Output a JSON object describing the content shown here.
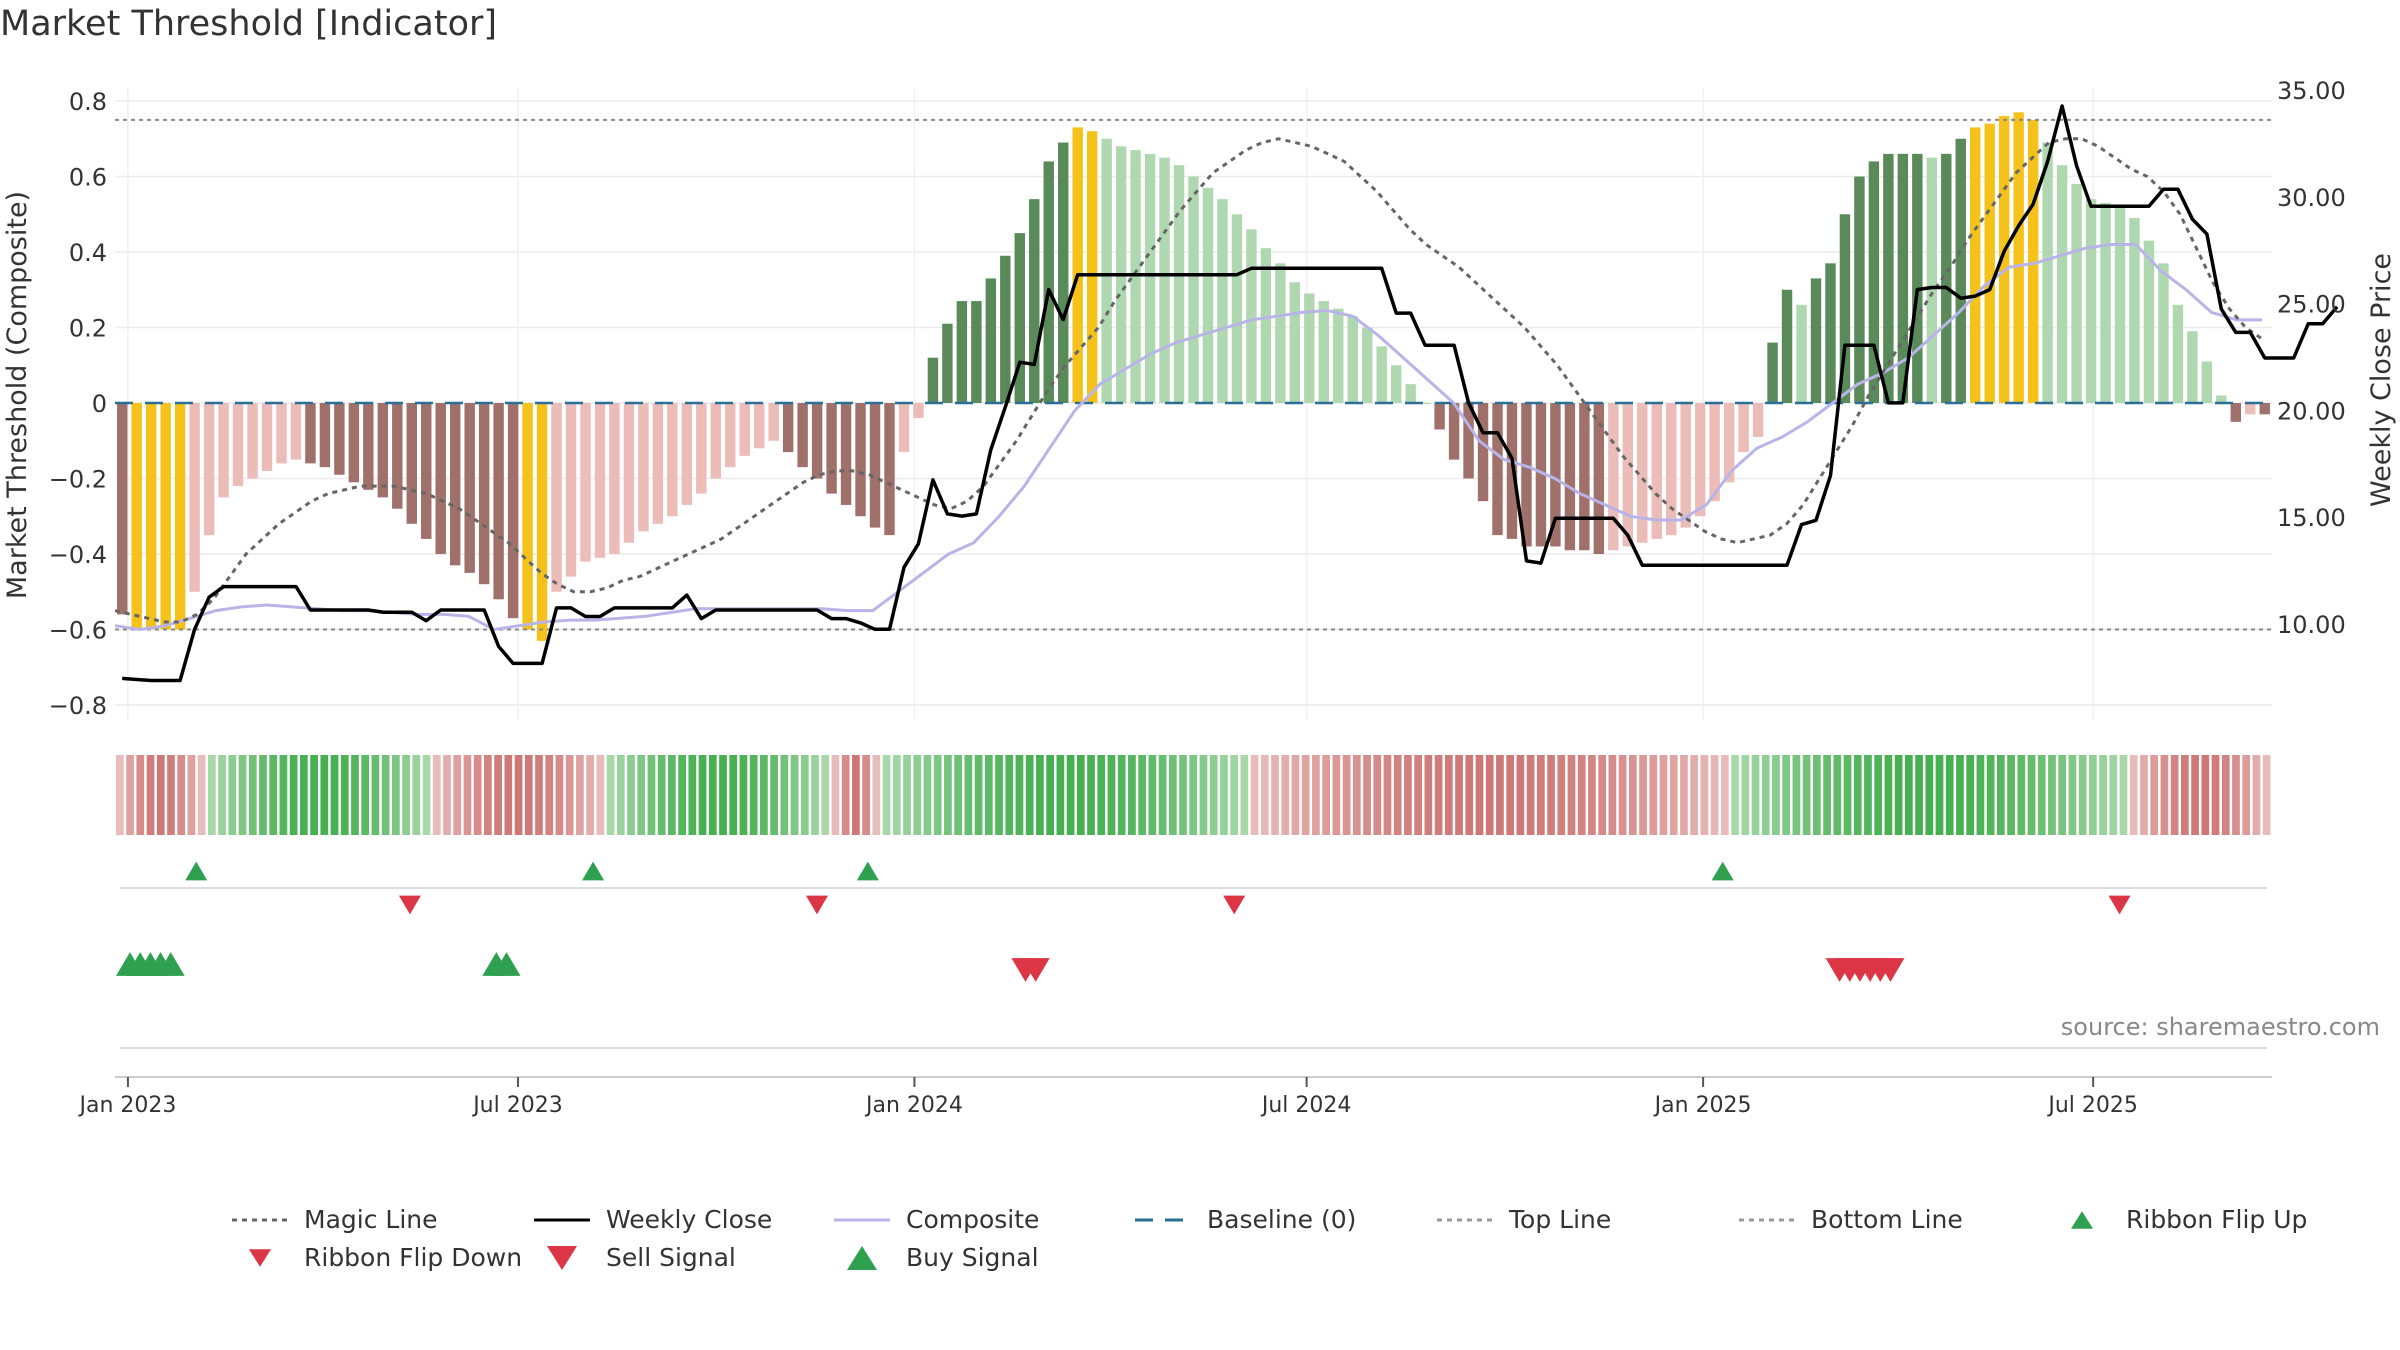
{
  "title": "Market Threshold [Indicator]",
  "source": "source: sharemaestro.com",
  "colors": {
    "pos_dark": "#5a8a5a",
    "pos_light": "#b0d8b0",
    "neg_dark": "#a0706a",
    "neg_light": "#ebbcb8",
    "extreme": "#f5c21b",
    "close": "#000000",
    "composite": "#b8b4e8",
    "magic": "#666666",
    "baseline": "#2a6f97",
    "buy": "#2ea04f",
    "sell": "#dc3545"
  },
  "legend": [
    {
      "label": "Magic Line",
      "icon": "dotted-line-icon",
      "color": "#666666"
    },
    {
      "label": "Weekly Close",
      "icon": "solid-line-icon",
      "color": "#000000"
    },
    {
      "label": "Composite",
      "icon": "solid-line-icon",
      "color": "#b8b4e8"
    },
    {
      "label": "Baseline (0)",
      "icon": "dashed-line-icon",
      "color": "#2a6f97"
    },
    {
      "label": "Top Line",
      "icon": "dotted-line-icon",
      "color": "#999999"
    },
    {
      "label": "Bottom Line",
      "icon": "dotted-line-icon",
      "color": "#999999"
    },
    {
      "label": "Ribbon Flip Up",
      "icon": "triangle-up-icon",
      "color": "#2ea04f"
    },
    {
      "label": "Ribbon Flip Down",
      "icon": "triangle-down-icon",
      "color": "#dc3545"
    },
    {
      "label": "Sell Signal",
      "icon": "triangle-down-large-icon",
      "color": "#dc3545"
    },
    {
      "label": "Buy Signal",
      "icon": "triangle-up-large-icon",
      "color": "#2ea04f"
    }
  ],
  "chart_data": {
    "type": "bar",
    "ylabel_left": "Market Threshold (Composite)",
    "ylabel_right": "Weekly Close Price",
    "ylim_left": [
      -0.8,
      0.8
    ],
    "ylim_right": [
      5,
      35
    ],
    "yticks_left": [
      "0.8",
      "0.6",
      "0.4",
      "0.2",
      "0",
      "−0.2",
      "−0.4",
      "−0.6",
      "−0.8"
    ],
    "yticks_left_values": [
      0.8,
      0.6,
      0.4,
      0.2,
      0,
      -0.2,
      -0.4,
      -0.6,
      -0.8
    ],
    "yticks_right": [
      "35.00",
      "30.00",
      "25.00",
      "20.00",
      "15.00",
      "10.00"
    ],
    "yticks_right_values": [
      35,
      30,
      25,
      20,
      15,
      10
    ],
    "xticks": [
      "Jan 2023",
      "Jul 2023",
      "Jan 2024",
      "Jul 2024",
      "Jan 2025",
      "Jul 2025"
    ],
    "x_range": [
      "2022-12-26",
      "2025-09-22"
    ],
    "xtick_dates": [
      "2023-01-01",
      "2023-07-01",
      "2024-01-01",
      "2024-07-01",
      "2025-01-01",
      "2025-07-01"
    ],
    "top_line": 0.75,
    "bottom_line": -0.6,
    "baseline": 0,
    "grid": true,
    "legend_position": "bottom",
    "bars_note": "weekly composite histogram, one bar per week",
    "composite_bars": [
      -0.56,
      -0.6,
      -0.6,
      -0.6,
      -0.6,
      -0.5,
      -0.35,
      -0.25,
      -0.22,
      -0.2,
      -0.18,
      -0.16,
      -0.15,
      -0.16,
      -0.17,
      -0.19,
      -0.21,
      -0.23,
      -0.25,
      -0.28,
      -0.32,
      -0.36,
      -0.4,
      -0.43,
      -0.45,
      -0.48,
      -0.52,
      -0.57,
      -0.6,
      -0.63,
      -0.5,
      -0.46,
      -0.42,
      -0.41,
      -0.4,
      -0.37,
      -0.34,
      -0.32,
      -0.3,
      -0.27,
      -0.24,
      -0.2,
      -0.17,
      -0.14,
      -0.12,
      -0.1,
      -0.13,
      -0.17,
      -0.2,
      -0.24,
      -0.27,
      -0.3,
      -0.33,
      -0.35,
      -0.13,
      -0.04,
      0.12,
      0.21,
      0.27,
      0.27,
      0.33,
      0.39,
      0.45,
      0.54,
      0.64,
      0.69,
      0.73,
      0.72,
      0.7,
      0.68,
      0.67,
      0.66,
      0.65,
      0.63,
      0.6,
      0.57,
      0.54,
      0.5,
      0.46,
      0.41,
      0.37,
      0.32,
      0.29,
      0.27,
      0.25,
      0.23,
      0.2,
      0.15,
      0.1,
      0.05,
      0,
      -0.07,
      -0.15,
      -0.2,
      -0.26,
      -0.35,
      -0.36,
      -0.38,
      -0.38,
      -0.38,
      -0.39,
      -0.39,
      -0.4,
      -0.39,
      -0.38,
      -0.37,
      -0.36,
      -0.35,
      -0.33,
      -0.3,
      -0.26,
      -0.21,
      -0.13,
      -0.09,
      0.16,
      0.3,
      0.26,
      0.33,
      0.37,
      0.5,
      0.6,
      0.64,
      0.66,
      0.66,
      0.66,
      0.65,
      0.66,
      0.7,
      0.73,
      0.74,
      0.76,
      0.77,
      0.75,
      0.69,
      0.63,
      0.58,
      0.54,
      0.53,
      0.52,
      0.49,
      0.43,
      0.37,
      0.26,
      0.19,
      0.11,
      0.02,
      -0.05,
      -0.03,
      -0.03
    ],
    "weekly_close": [
      7.5,
      7.45,
      7.4,
      7.4,
      7.4,
      9.8,
      11.3,
      11.8,
      11.8,
      11.8,
      11.8,
      11.8,
      11.8,
      10.7,
      10.7,
      10.7,
      10.7,
      10.7,
      10.6,
      10.6,
      10.6,
      10.2,
      10.7,
      10.7,
      10.7,
      10.7,
      9.0,
      8.2,
      8.2,
      8.2,
      10.8,
      10.8,
      10.4,
      10.4,
      10.8,
      10.8,
      10.8,
      10.8,
      10.8,
      11.4,
      10.3,
      10.7,
      10.7,
      10.7,
      10.7,
      10.7,
      10.7,
      10.7,
      10.7,
      10.3,
      10.3,
      10.1,
      9.8,
      9.8,
      12.7,
      13.8,
      16.8,
      15.2,
      15.1,
      15.2,
      18.2,
      20.2,
      22.3,
      22.2,
      25.7,
      24.3,
      26.4,
      26.4,
      26.4,
      26.4,
      26.4,
      26.4,
      26.4,
      26.4,
      26.4,
      26.4,
      26.4,
      26.4,
      26.7,
      26.7,
      26.7,
      26.7,
      26.7,
      26.7,
      26.7,
      26.7,
      26.7,
      26.7,
      24.6,
      24.6,
      23.1,
      23.1,
      23.1,
      20.4,
      19.0,
      19.0,
      17.8,
      13.0,
      12.9,
      15.0,
      15.0,
      15.0,
      15.0,
      15.0,
      14.2,
      12.8,
      12.8,
      12.8,
      12.8,
      12.8,
      12.8,
      12.8,
      12.8,
      12.8,
      12.8,
      12.8,
      14.7,
      14.9,
      17.0,
      23.1,
      23.1,
      23.1,
      20.4,
      20.4,
      25.7,
      25.8,
      25.8,
      25.3,
      25.4,
      25.7,
      27.5,
      28.7,
      29.7,
      31.7,
      34.3,
      31.5,
      29.6,
      29.6,
      29.6,
      29.6,
      29.6,
      30.4,
      30.4,
      29.0,
      28.3,
      24.8,
      23.7,
      23.7,
      22.5,
      22.5,
      22.5,
      24.1,
      24.1,
      24.9
    ],
    "magic_line": [
      -0.55,
      -0.56,
      -0.57,
      -0.58,
      -0.58,
      -0.56,
      -0.52,
      -0.46,
      -0.4,
      -0.36,
      -0.32,
      -0.29,
      -0.26,
      -0.24,
      -0.23,
      -0.22,
      -0.22,
      -0.22,
      -0.23,
      -0.24,
      -0.26,
      -0.28,
      -0.31,
      -0.34,
      -0.37,
      -0.41,
      -0.45,
      -0.48,
      -0.5,
      -0.5,
      -0.49,
      -0.47,
      -0.46,
      -0.44,
      -0.42,
      -0.4,
      -0.38,
      -0.36,
      -0.33,
      -0.3,
      -0.27,
      -0.24,
      -0.21,
      -0.19,
      -0.18,
      -0.18,
      -0.19,
      -0.21,
      -0.23,
      -0.25,
      -0.27,
      -0.28,
      -0.26,
      -0.22,
      -0.16,
      -0.1,
      -0.03,
      0.04,
      0.1,
      0.15,
      0.2,
      0.27,
      0.33,
      0.39,
      0.45,
      0.51,
      0.56,
      0.61,
      0.64,
      0.67,
      0.69,
      0.7,
      0.69,
      0.68,
      0.66,
      0.64,
      0.6,
      0.56,
      0.51,
      0.46,
      0.42,
      0.39,
      0.36,
      0.32,
      0.28,
      0.24,
      0.2,
      0.15,
      0.1,
      0.04,
      -0.02,
      -0.08,
      -0.14,
      -0.19,
      -0.24,
      -0.28,
      -0.31,
      -0.34,
      -0.36,
      -0.37,
      -0.36,
      -0.35,
      -0.32,
      -0.27,
      -0.2,
      -0.13,
      -0.06,
      0.02,
      0.09,
      0.16,
      0.23,
      0.3,
      0.36,
      0.43,
      0.49,
      0.55,
      0.61,
      0.65,
      0.69,
      0.7,
      0.7,
      0.68,
      0.65,
      0.62,
      0.6,
      0.56,
      0.5,
      0.41,
      0.32,
      0.25,
      0.2,
      0.17
    ],
    "composite_line": [
      -0.59,
      -0.6,
      -0.59,
      -0.57,
      -0.55,
      -0.54,
      -0.535,
      -0.54,
      -0.545,
      -0.55,
      -0.55,
      -0.555,
      -0.56,
      -0.56,
      -0.565,
      -0.6,
      -0.59,
      -0.58,
      -0.575,
      -0.575,
      -0.57,
      -0.565,
      -0.555,
      -0.545,
      -0.545,
      -0.545,
      -0.545,
      -0.545,
      -0.545,
      -0.55,
      -0.55,
      -0.5,
      -0.45,
      -0.4,
      -0.37,
      -0.3,
      -0.22,
      -0.12,
      -0.02,
      0.05,
      0.09,
      0.13,
      0.16,
      0.18,
      0.2,
      0.22,
      0.23,
      0.24,
      0.245,
      0.23,
      0.18,
      0.12,
      0.06,
      0.0,
      -0.1,
      -0.15,
      -0.17,
      -0.2,
      -0.24,
      -0.27,
      -0.3,
      -0.31,
      -0.31,
      -0.27,
      -0.18,
      -0.12,
      -0.09,
      -0.05,
      0.0,
      0.05,
      0.08,
      0.12,
      0.18,
      0.24,
      0.31,
      0.36,
      0.37,
      0.39,
      0.41,
      0.42,
      0.42,
      0.35,
      0.3,
      0.24,
      0.22,
      0.22
    ],
    "ribbon_bands": [
      {
        "from": 0,
        "to": 9,
        "side": "neg"
      },
      {
        "from": 9,
        "to": 31,
        "side": "pos"
      },
      {
        "from": 31,
        "to": 48,
        "side": "neg"
      },
      {
        "from": 48,
        "to": 70,
        "side": "pos"
      },
      {
        "from": 70,
        "to": 75,
        "side": "neg"
      },
      {
        "from": 75,
        "to": 111,
        "side": "pos"
      },
      {
        "from": 111,
        "to": 158,
        "side": "neg"
      },
      {
        "from": 158,
        "to": 197,
        "side": "pos"
      },
      {
        "from": 197,
        "to": 211,
        "side": "neg"
      }
    ],
    "ribbon_flip_up_weeks": [
      7,
      46,
      73,
      157
    ],
    "ribbon_flip_down_weeks": [
      28,
      68,
      109,
      196
    ],
    "buy_signal_weeks": [
      0,
      1,
      2,
      3,
      4,
      36,
      37
    ],
    "sell_signal_weeks": [
      88,
      89,
      168,
      169,
      170,
      171,
      172,
      173
    ]
  }
}
